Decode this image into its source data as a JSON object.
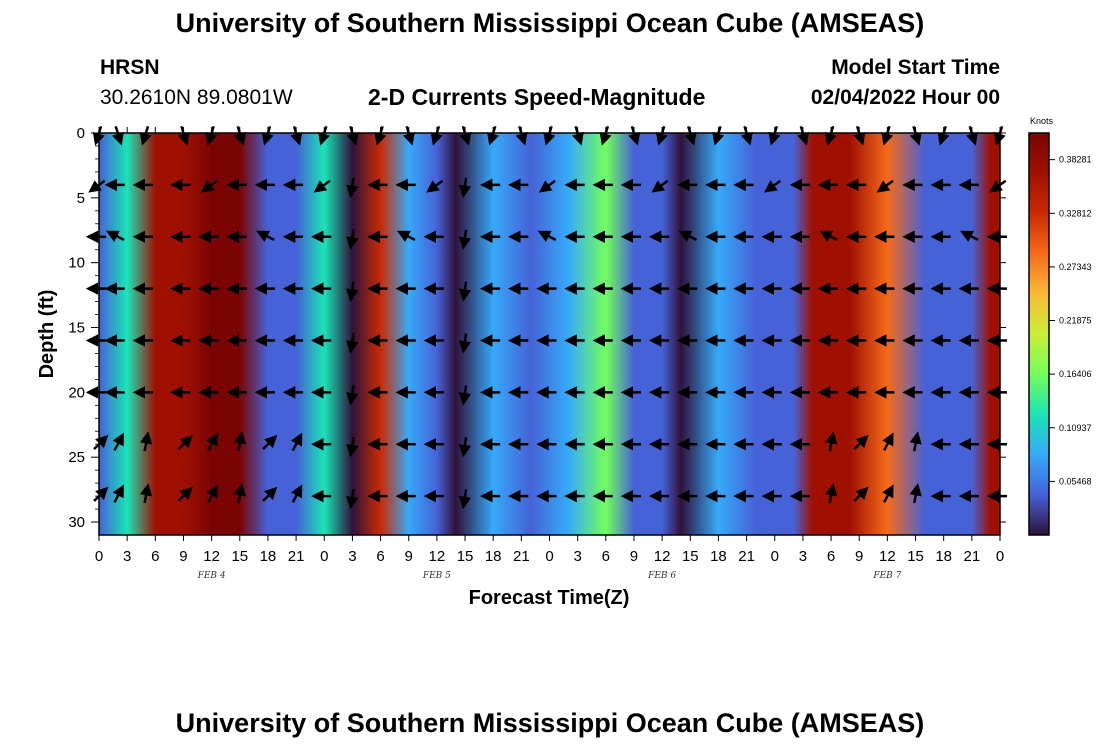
{
  "page": {
    "title": "University of Southern Mississippi Ocean Cube (AMSEAS)",
    "station": "HRSN",
    "coords": "30.2610N  89.0801W",
    "subtitle": "2-D Currents Speed-Magnitude",
    "model_start_label": "Model Start Time",
    "model_start_value": "02/04/2022 Hour 00",
    "footer_title": "University of Southern Mississippi Ocean Cube (AMSEAS)"
  },
  "chart_data": {
    "type": "heatmap",
    "title": "2-D Currents Speed-Magnitude",
    "xlabel": "Forecast Time(Z)",
    "ylabel": "Depth (ft)",
    "x_tick_labels": [
      "0",
      "3",
      "6",
      "9",
      "12",
      "15",
      "18",
      "21",
      "0",
      "3",
      "6",
      "9",
      "12",
      "15",
      "18",
      "21",
      "0",
      "3",
      "6",
      "9",
      "12",
      "15",
      "18",
      "21",
      "0",
      "3",
      "6",
      "9",
      "12",
      "15",
      "18",
      "21",
      "0"
    ],
    "day_labels": [
      "FEB 4",
      "FEB 5",
      "FEB 6",
      "FEB 7"
    ],
    "xlim_hours": [
      0,
      96
    ],
    "y_ticks": [
      0,
      5,
      10,
      15,
      20,
      25,
      30
    ],
    "ylim": [
      0,
      31
    ],
    "colorbar": {
      "unit": "Knots",
      "min": 0,
      "max": 0.41,
      "tick_labels": [
        "0.38281",
        "0.32812",
        "0.27343",
        "0.21875",
        "0.16406",
        "0.10937",
        "0.05468"
      ],
      "tick_values": [
        0.38281,
        0.32812,
        0.27343,
        0.21875,
        0.16406,
        0.10937,
        0.05468
      ]
    },
    "speed_columns": [
      {
        "hour": 0,
        "v": 0.06
      },
      {
        "hour": 3,
        "v": 0.12
      },
      {
        "hour": 6,
        "v": 0.38
      },
      {
        "hour": 9,
        "v": 0.38
      },
      {
        "hour": 12,
        "v": 0.4
      },
      {
        "hour": 15,
        "v": 0.39
      },
      {
        "hour": 18,
        "v": 0.06
      },
      {
        "hour": 21,
        "v": 0.06
      },
      {
        "hour": 24,
        "v": 0.12
      },
      {
        "hour": 27,
        "v": 0.02
      },
      {
        "hour": 30,
        "v": 0.32
      },
      {
        "hour": 33,
        "v": 0.09
      },
      {
        "hour": 36,
        "v": 0.05
      },
      {
        "hour": 38,
        "v": 0.02
      },
      {
        "hour": 42,
        "v": 0.1
      },
      {
        "hour": 46,
        "v": 0.06
      },
      {
        "hour": 50,
        "v": 0.07
      },
      {
        "hour": 54,
        "v": 0.16
      },
      {
        "hour": 57,
        "v": 0.06
      },
      {
        "hour": 60,
        "v": 0.05
      },
      {
        "hour": 62,
        "v": 0.02
      },
      {
        "hour": 66,
        "v": 0.08
      },
      {
        "hour": 70,
        "v": 0.06
      },
      {
        "hour": 74,
        "v": 0.06
      },
      {
        "hour": 76,
        "v": 0.36
      },
      {
        "hour": 80,
        "v": 0.36
      },
      {
        "hour": 84,
        "v": 0.3
      },
      {
        "hour": 88,
        "v": 0.05
      },
      {
        "hour": 91,
        "v": 0.06
      },
      {
        "hour": 93,
        "v": 0.03
      },
      {
        "hour": 95,
        "v": 0.36
      }
    ],
    "arrows": {
      "depths_ft": [
        0,
        4,
        8,
        12,
        16,
        20,
        24,
        28
      ],
      "hours": [
        0,
        2,
        5,
        9,
        12,
        15,
        18,
        21,
        24,
        27,
        30,
        33,
        36,
        39,
        42,
        45,
        48,
        51,
        54,
        57,
        60,
        63,
        66,
        69,
        72,
        75,
        78,
        81,
        84,
        87,
        90,
        93,
        96
      ],
      "direction": "mostly westward (pointing left) near surface, mixed near-vertical at hours 27 and 39, north-east at depth 24-28 ft"
    }
  }
}
